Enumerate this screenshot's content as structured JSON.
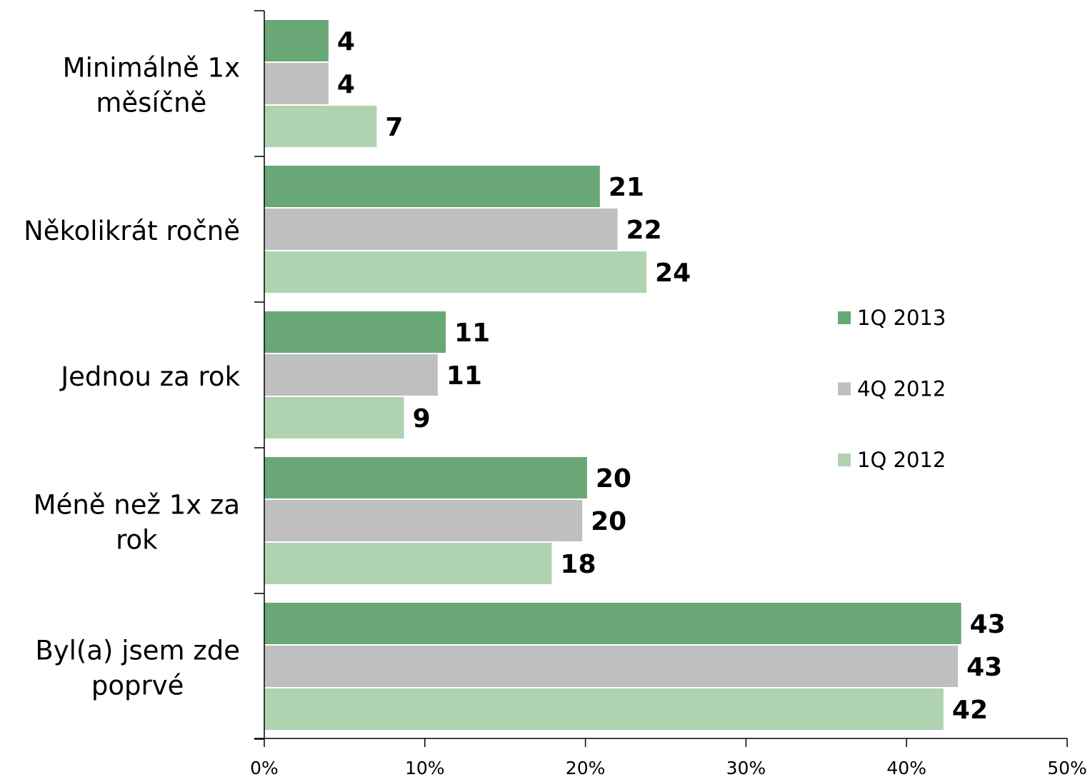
{
  "chart_data": {
    "type": "bar",
    "orientation": "horizontal",
    "categories": [
      [
        "Minimálně 1x",
        "měsíčně"
      ],
      [
        "Několikrát ročně"
      ],
      [
        "Jednou za rok"
      ],
      [
        "Méně než 1x za",
        "rok"
      ],
      [
        "Byl(a) jsem zde",
        "poprvé"
      ]
    ],
    "series": [
      {
        "name": "1Q 2013",
        "color": "#6aa776",
        "values": [
          4,
          21,
          11,
          20,
          43
        ],
        "labels": [
          "4",
          "21",
          "11",
          "20",
          "43"
        ],
        "exact": [
          4.0,
          20.9,
          11.3,
          20.1,
          43.4
        ]
      },
      {
        "name": "4Q 2012",
        "color": "#bfbfbf",
        "values": [
          4,
          22,
          11,
          20,
          43
        ],
        "labels": [
          "4",
          "22",
          "11",
          "20",
          "43"
        ],
        "exact": [
          4.0,
          22.0,
          10.8,
          19.8,
          43.2
        ]
      },
      {
        "name": "1Q 2012",
        "color": "#afd2b1",
        "values": [
          7,
          24,
          9,
          18,
          42
        ],
        "labels": [
          "7",
          "24",
          "9",
          "18",
          "42"
        ],
        "exact": [
          7.0,
          23.8,
          8.7,
          17.9,
          42.3
        ]
      }
    ],
    "x_ticks": [
      "0%",
      "10%",
      "20%",
      "30%",
      "40%",
      "50%"
    ],
    "xlim": [
      0,
      50
    ],
    "title": "",
    "xlabel": "",
    "ylabel": "",
    "grid": false,
    "legend_position": "right"
  }
}
